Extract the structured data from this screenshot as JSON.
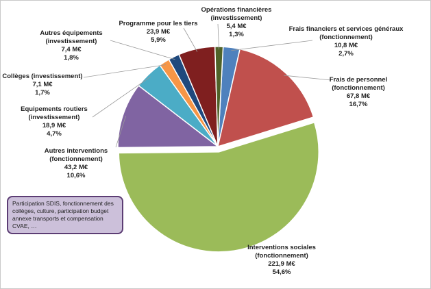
{
  "chart_data": {
    "type": "pie",
    "title": "",
    "slices": [
      {
        "label": "Frais financiers et services généraux",
        "sublabel": "(fonctionnement)",
        "amount": "10,8 M€",
        "percent_text": "2,7%",
        "value": 2.7,
        "color": "#4f81bd"
      },
      {
        "label": "Frais de personnel",
        "sublabel": "(fonctionnement)",
        "amount": "67,8 M€",
        "percent_text": "16,7%",
        "value": 16.7,
        "color": "#c0504d"
      },
      {
        "label": "Interventions sociales",
        "sublabel": "(fonctionnement)",
        "amount": "221,9 M€",
        "percent_text": "54,6%",
        "value": 54.6,
        "color": "#9bbb59"
      },
      {
        "label": "Autres interventions",
        "sublabel": "(fonctionnement)",
        "amount": "43,2 M€",
        "percent_text": "10,6%",
        "value": 10.6,
        "color": "#8064a2"
      },
      {
        "label": "Equipements routiers",
        "sublabel": "(investissement)",
        "amount": "18,9 M€",
        "percent_text": "4,7%",
        "value": 4.7,
        "color": "#4bacc6"
      },
      {
        "label": "Collèges (investissement)",
        "sublabel": "",
        "amount": "7,1 M€",
        "percent_text": "1,7%",
        "value": 1.7,
        "color": "#f79646"
      },
      {
        "label": "Autres équipements",
        "sublabel": "(investissement)",
        "amount": "7,4 M€",
        "percent_text": "1,8%",
        "value": 1.8,
        "color": "#1f497d"
      },
      {
        "label": "Programme pour les tiers",
        "sublabel": "",
        "amount": "23,9 M€",
        "percent_text": "5,9%",
        "value": 5.9,
        "color": "#7f1f1f"
      },
      {
        "label": "Opérations financières",
        "sublabel": "(investissement)",
        "amount": "5,4 M€",
        "percent_text": "1,3%",
        "value": 1.3,
        "color": "#4f6228"
      }
    ]
  },
  "note": {
    "text": "Participation SDIS, fonctionnement des collèges, culture,  participation budget annexe transports et compensation CVAE, …"
  }
}
